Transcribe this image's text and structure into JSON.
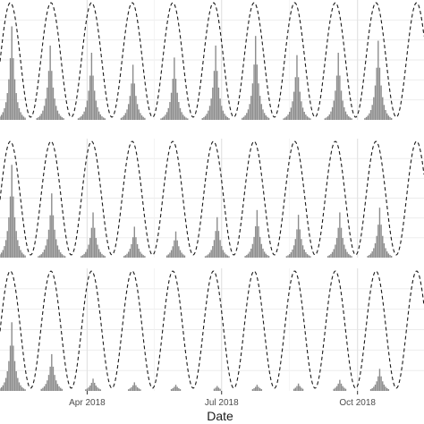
{
  "chart_data": [
    {
      "type": "bar",
      "panel": 1,
      "xlabel": "Date",
      "x_ticks": [
        "Apr 2018",
        "Jul 2018",
        "Oct 2018"
      ],
      "x_tick_dates": [
        "2018-04-01",
        "2018-07-01",
        "2018-10-01"
      ],
      "x_range": [
        "2018-02-01",
        "2018-11-15"
      ],
      "ylim": [
        0,
        1
      ],
      "grid": true,
      "oscillation": {
        "style": "dashed",
        "peak_dates": [
          "2018-02-08",
          "2018-03-07",
          "2018-04-04",
          "2018-05-01",
          "2018-05-29",
          "2018-06-26",
          "2018-07-23",
          "2018-08-20",
          "2018-09-16",
          "2018-10-14",
          "2018-11-10"
        ]
      },
      "series": [
        {
          "style": "bars",
          "peaks": [
            {
              "date": "2018-02-09",
              "value": 0.78
            },
            {
              "date": "2018-03-07",
              "value": 0.62
            },
            {
              "date": "2018-04-04",
              "value": 0.56
            },
            {
              "date": "2018-05-02",
              "value": 0.46
            },
            {
              "date": "2018-05-30",
              "value": 0.52
            },
            {
              "date": "2018-06-27",
              "value": 0.62
            },
            {
              "date": "2018-07-24",
              "value": 0.7
            },
            {
              "date": "2018-08-21",
              "value": 0.54
            },
            {
              "date": "2018-09-18",
              "value": 0.56
            },
            {
              "date": "2018-10-15",
              "value": 0.66
            }
          ]
        }
      ]
    },
    {
      "type": "bar",
      "panel": 2,
      "xlabel": "Date",
      "x_ticks": [
        "Apr 2018",
        "Jul 2018",
        "Oct 2018"
      ],
      "x_tick_dates": [
        "2018-04-01",
        "2018-07-01",
        "2018-10-01"
      ],
      "x_range": [
        "2018-02-01",
        "2018-11-15"
      ],
      "ylim": [
        0,
        1
      ],
      "grid": true,
      "oscillation": {
        "style": "dashed",
        "peak_dates": [
          "2018-02-08",
          "2018-03-07",
          "2018-04-04",
          "2018-05-01",
          "2018-05-29",
          "2018-06-26",
          "2018-07-23",
          "2018-08-20",
          "2018-09-16",
          "2018-10-14",
          "2018-11-10"
        ]
      },
      "series": [
        {
          "style": "bars",
          "peaks": [
            {
              "date": "2018-02-09",
              "value": 0.78
            },
            {
              "date": "2018-03-08",
              "value": 0.54
            },
            {
              "date": "2018-04-05",
              "value": 0.38
            },
            {
              "date": "2018-05-03",
              "value": 0.26
            },
            {
              "date": "2018-05-31",
              "value": 0.22
            },
            {
              "date": "2018-06-28",
              "value": 0.34
            },
            {
              "date": "2018-07-25",
              "value": 0.4
            },
            {
              "date": "2018-08-22",
              "value": 0.36
            },
            {
              "date": "2018-09-19",
              "value": 0.38
            },
            {
              "date": "2018-10-16",
              "value": 0.42
            }
          ]
        }
      ]
    },
    {
      "type": "bar",
      "panel": 3,
      "xlabel": "Date",
      "x_ticks": [
        "Apr 2018",
        "Jul 2018",
        "Oct 2018"
      ],
      "x_tick_dates": [
        "2018-04-01",
        "2018-07-01",
        "2018-10-01"
      ],
      "x_range": [
        "2018-02-01",
        "2018-11-15"
      ],
      "ylim": [
        0,
        1
      ],
      "grid": true,
      "oscillation": {
        "style": "dashed",
        "peak_dates": [
          "2018-02-08",
          "2018-03-07",
          "2018-04-04",
          "2018-05-01",
          "2018-05-29",
          "2018-06-26",
          "2018-07-23",
          "2018-08-20",
          "2018-09-16",
          "2018-10-14",
          "2018-11-10"
        ]
      },
      "series": [
        {
          "style": "bars",
          "peaks": [
            {
              "date": "2018-02-09",
              "value": 0.56
            },
            {
              "date": "2018-03-08",
              "value": 0.3
            },
            {
              "date": "2018-04-05",
              "value": 0.1
            },
            {
              "date": "2018-05-03",
              "value": 0.07
            },
            {
              "date": "2018-05-31",
              "value": 0.05
            },
            {
              "date": "2018-06-28",
              "value": 0.04
            },
            {
              "date": "2018-07-25",
              "value": 0.05
            },
            {
              "date": "2018-08-22",
              "value": 0.06
            },
            {
              "date": "2018-09-19",
              "value": 0.09
            },
            {
              "date": "2018-10-16",
              "value": 0.18
            }
          ]
        }
      ]
    }
  ]
}
